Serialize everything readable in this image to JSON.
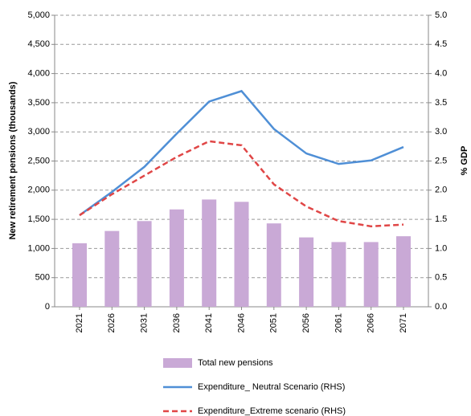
{
  "chart_data": {
    "type": "bar_line",
    "y_label": "New retirement pensions (thousands)",
    "y2_label": "% GDP",
    "categories": [
      "2021",
      "2026",
      "2031",
      "2036",
      "2041",
      "2046",
      "2051",
      "2056",
      "2061",
      "2066",
      "2071"
    ],
    "series": [
      {
        "name": "Total new pensions",
        "type": "bar",
        "color": "#c9a9d6",
        "values": [
          1090,
          1300,
          1470,
          1670,
          1840,
          1800,
          1430,
          1190,
          1110,
          1110,
          1210
        ]
      },
      {
        "name": "Expenditure_ Neutral Scenario (RHS)",
        "type": "line",
        "axis": "y2",
        "color": "#4f8fd6",
        "dash": false,
        "values": [
          1.57,
          1.97,
          2.4,
          2.97,
          3.52,
          3.7,
          3.05,
          2.63,
          2.45,
          2.51,
          2.74
        ]
      },
      {
        "name": "Expenditure_Extreme scenario (RHS)",
        "type": "line",
        "axis": "y2",
        "color": "#e04646",
        "dash": true,
        "values": [
          1.57,
          1.93,
          2.25,
          2.57,
          2.84,
          2.77,
          2.1,
          1.72,
          1.47,
          1.38,
          1.41
        ]
      }
    ],
    "ylim": [
      0,
      5000
    ],
    "yticks": [
      0,
      500,
      {
        "value": 1000,
        "label": "1,000"
      },
      {
        "value": 1500,
        "label": "1,500"
      },
      {
        "value": 2000,
        "label": "2,000"
      },
      {
        "value": 2500,
        "label": "2,500"
      },
      {
        "value": 3000,
        "label": "3,000"
      },
      {
        "value": 3500,
        "label": "3,500"
      },
      {
        "value": 4000,
        "label": "4,000"
      },
      {
        "value": 4500,
        "label": "4,500"
      },
      {
        "value": 5000,
        "label": "5,000"
      }
    ],
    "y2lim": [
      0,
      5
    ],
    "y2ticks": [
      {
        "value": 0,
        "label": "0.0"
      },
      0.5,
      {
        "value": 1,
        "label": "1.0"
      },
      1.5,
      {
        "value": 2,
        "label": "2.0"
      },
      2.5,
      {
        "value": 3,
        "label": "3.0"
      },
      3.5,
      {
        "value": 4,
        "label": "4.0"
      },
      4.5,
      {
        "value": 5,
        "label": "5.0"
      }
    ],
    "grid": true
  }
}
